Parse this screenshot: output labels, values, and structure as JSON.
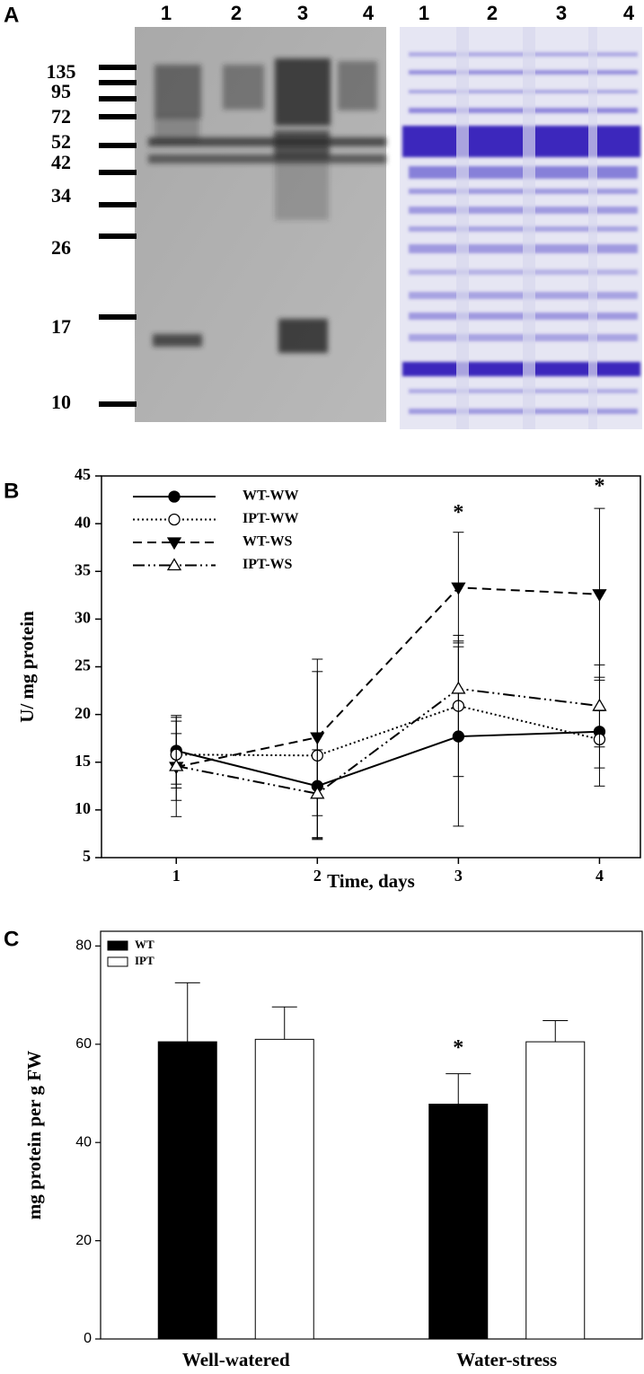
{
  "panel_labels": [
    "A",
    "B",
    "C"
  ],
  "gel": {
    "lanes_left": [
      "1",
      "2",
      "3",
      "4"
    ],
    "lanes_right": [
      "1",
      "2",
      "3",
      "4"
    ],
    "markers": [
      "135",
      "95",
      "72",
      "52",
      "42",
      "34",
      "26",
      "17",
      "10"
    ]
  },
  "chart_data": [
    {
      "type": "line",
      "ylabel": "U/ mg protein",
      "xlabel": "Time, days",
      "x": [
        1,
        2,
        3,
        4
      ],
      "xlim": [
        0.47,
        4.29
      ],
      "xticks": [
        1,
        2,
        3,
        4
      ],
      "ylim": [
        5,
        45
      ],
      "yticks": [
        5,
        10,
        15,
        20,
        25,
        30,
        35,
        40,
        45
      ],
      "legend": "upper left",
      "series": [
        {
          "name": "WT-WW",
          "color": "#000000",
          "marker": "filled-circle",
          "line": "solid",
          "values": [
            16.2,
            12.5,
            17.7,
            18.2
          ],
          "errors": [
            3.5,
            5.5,
            9.4,
            5.7
          ]
        },
        {
          "name": "IPT-WW",
          "color": "#000000",
          "marker": "open-circle",
          "line": "dotted",
          "values": [
            15.8,
            15.7,
            20.9,
            17.4
          ],
          "errors": [
            3.5,
            8.8,
            7.4,
            3.0
          ]
        },
        {
          "name": "WT-WS",
          "color": "#000000",
          "marker": "filled-triangle-down",
          "line": "dashed",
          "values": [
            14.5,
            17.6,
            33.3,
            32.6
          ],
          "errors": [
            3.5,
            8.2,
            5.8,
            9.0
          ]
        },
        {
          "name": "IPT-WS",
          "color": "#000000",
          "marker": "open-triangle-up",
          "line": "dashdot",
          "values": [
            14.6,
            11.7,
            22.7,
            20.9
          ],
          "errors": [
            5.3,
            4.6,
            5.0,
            4.3
          ]
        }
      ],
      "annotations": [
        {
          "text": "*",
          "x": 3,
          "y": 41.0
        },
        {
          "text": "*",
          "x": 4,
          "y": 43.8
        }
      ]
    },
    {
      "type": "bar",
      "ylabel": "mg protein per g FW",
      "categories": [
        "Well-watered",
        "Water-stress"
      ],
      "ylim": [
        0,
        83
      ],
      "yticks": [
        0,
        20,
        40,
        60,
        80
      ],
      "legend": "upper left",
      "series": [
        {
          "name": "WT",
          "color": "#000000",
          "values": [
            60.5,
            47.8
          ],
          "errors": [
            12.0,
            6.2
          ]
        },
        {
          "name": "IPT",
          "color": "#ffffff",
          "values": [
            61.0,
            60.5
          ],
          "errors": [
            6.6,
            4.3
          ]
        }
      ],
      "annotations": [
        {
          "text": "*",
          "category": 1,
          "series": 0,
          "y": 59
        }
      ]
    }
  ]
}
